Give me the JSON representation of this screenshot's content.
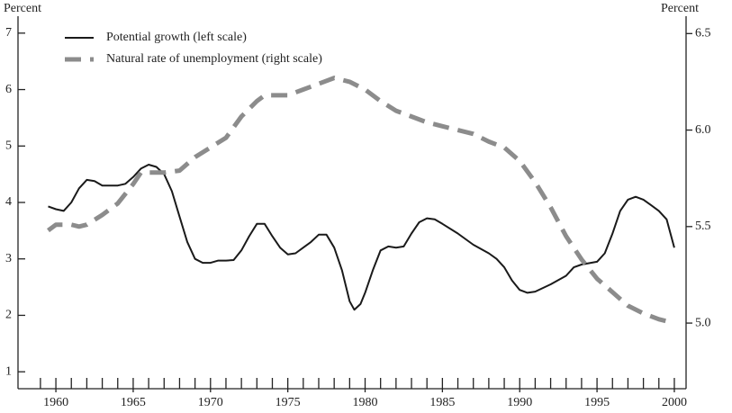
{
  "chart_data": {
    "type": "line",
    "y_label": "Percent",
    "y2_label": "Percent",
    "xlim": [
      1957.55,
      2000.76
    ],
    "xticks": [
      1960,
      1965,
      1970,
      1975,
      1980,
      1985,
      1990,
      1995,
      2000
    ],
    "xminorticks": [
      1959,
      1960,
      1961,
      1962,
      1963,
      1964,
      1965,
      1966,
      1967,
      1968,
      1969,
      1970,
      1971,
      1972,
      1973,
      1974,
      1975,
      1976,
      1977,
      1978,
      1979,
      1980,
      1981,
      1982,
      1983,
      1984,
      1985,
      1986,
      1987,
      1988,
      1989,
      1990,
      1991,
      1992,
      1993,
      1994,
      1995,
      1996,
      1997,
      1998,
      1999,
      2000
    ],
    "ylim": [
      0.7,
      7.3
    ],
    "yticks": [
      1,
      2,
      3,
      4,
      5,
      6,
      7
    ],
    "y2lim": [
      4.66,
      6.59
    ],
    "y2ticks": [
      {
        "value": 5,
        "label": "5.0"
      },
      5.5,
      {
        "value": 6,
        "label": "6.0"
      },
      6.5
    ],
    "legend": "upper left",
    "series": [
      {
        "name": "Potential growth (left scale)",
        "color": "#1a1a1a",
        "dashed": false,
        "axis": "y",
        "x": [
          1959.5,
          1960,
          1960.5,
          1961,
          1961.5,
          1962,
          1962.5,
          1963,
          1964,
          1964.5,
          1965,
          1965.5,
          1966,
          1966.5,
          1967,
          1967.5,
          1968,
          1968.5,
          1969,
          1969.5,
          1970,
          1970.5,
          1971,
          1971.5,
          1972,
          1972.5,
          1973,
          1973.5,
          1974,
          1974.5,
          1975,
          1975.5,
          1976,
          1976.5,
          1977,
          1977.5,
          1978,
          1978.5,
          1979,
          1979.3,
          1979.7,
          1980,
          1980.5,
          1981,
          1981.5,
          1982,
          1982.5,
          1983,
          1983.5,
          1984,
          1984.5,
          1985,
          1986,
          1987,
          1988,
          1988.5,
          1989,
          1989.5,
          1990,
          1990.5,
          1991,
          1992,
          1993,
          1993.5,
          1994,
          1995,
          1995.5,
          1996,
          1996.5,
          1997,
          1997.5,
          1998,
          1998.5,
          1999,
          1999.5,
          2000
        ],
        "values": [
          3.93,
          3.88,
          3.85,
          4.0,
          4.25,
          4.4,
          4.38,
          4.3,
          4.3,
          4.33,
          4.45,
          4.6,
          4.67,
          4.63,
          4.5,
          4.2,
          3.75,
          3.3,
          3.0,
          2.93,
          2.93,
          2.97,
          2.97,
          2.98,
          3.15,
          3.4,
          3.62,
          3.62,
          3.4,
          3.2,
          3.08,
          3.1,
          3.2,
          3.3,
          3.43,
          3.43,
          3.2,
          2.8,
          2.25,
          2.1,
          2.2,
          2.4,
          2.8,
          3.15,
          3.22,
          3.2,
          3.22,
          3.45,
          3.65,
          3.72,
          3.7,
          3.62,
          3.45,
          3.25,
          3.1,
          3.0,
          2.85,
          2.62,
          2.45,
          2.4,
          2.42,
          2.55,
          2.7,
          2.85,
          2.9,
          2.95,
          3.1,
          3.45,
          3.85,
          4.05,
          4.1,
          4.05,
          3.95,
          3.85,
          3.7,
          3.2
        ]
      },
      {
        "name": "Natural rate of unemployment (right scale)",
        "color": "#8c8c8c",
        "dashed": true,
        "axis": "y2",
        "x": [
          1959.5,
          1960,
          1961,
          1961.5,
          1962,
          1963,
          1964,
          1965,
          1965.5,
          1967,
          1968,
          1969,
          1970,
          1971,
          1972,
          1973,
          1973.5,
          1975,
          1976,
          1977,
          1978,
          1979,
          1980,
          1981,
          1982,
          1983,
          1984,
          1985,
          1986,
          1987,
          1988,
          1989,
          1990,
          1991,
          1992,
          1993,
          1994,
          1995,
          1996,
          1997,
          1998,
          1999,
          2000
        ],
        "values": [
          5.48,
          5.51,
          5.51,
          5.5,
          5.51,
          5.56,
          5.62,
          5.72,
          5.78,
          5.78,
          5.79,
          5.86,
          5.91,
          5.96,
          6.07,
          6.15,
          6.18,
          6.18,
          6.21,
          6.24,
          6.27,
          6.25,
          6.21,
          6.15,
          6.1,
          6.07,
          6.04,
          6.02,
          6.0,
          5.98,
          5.94,
          5.91,
          5.84,
          5.73,
          5.6,
          5.45,
          5.33,
          5.23,
          5.16,
          5.09,
          5.05,
          5.02,
          5.0
        ]
      }
    ]
  }
}
